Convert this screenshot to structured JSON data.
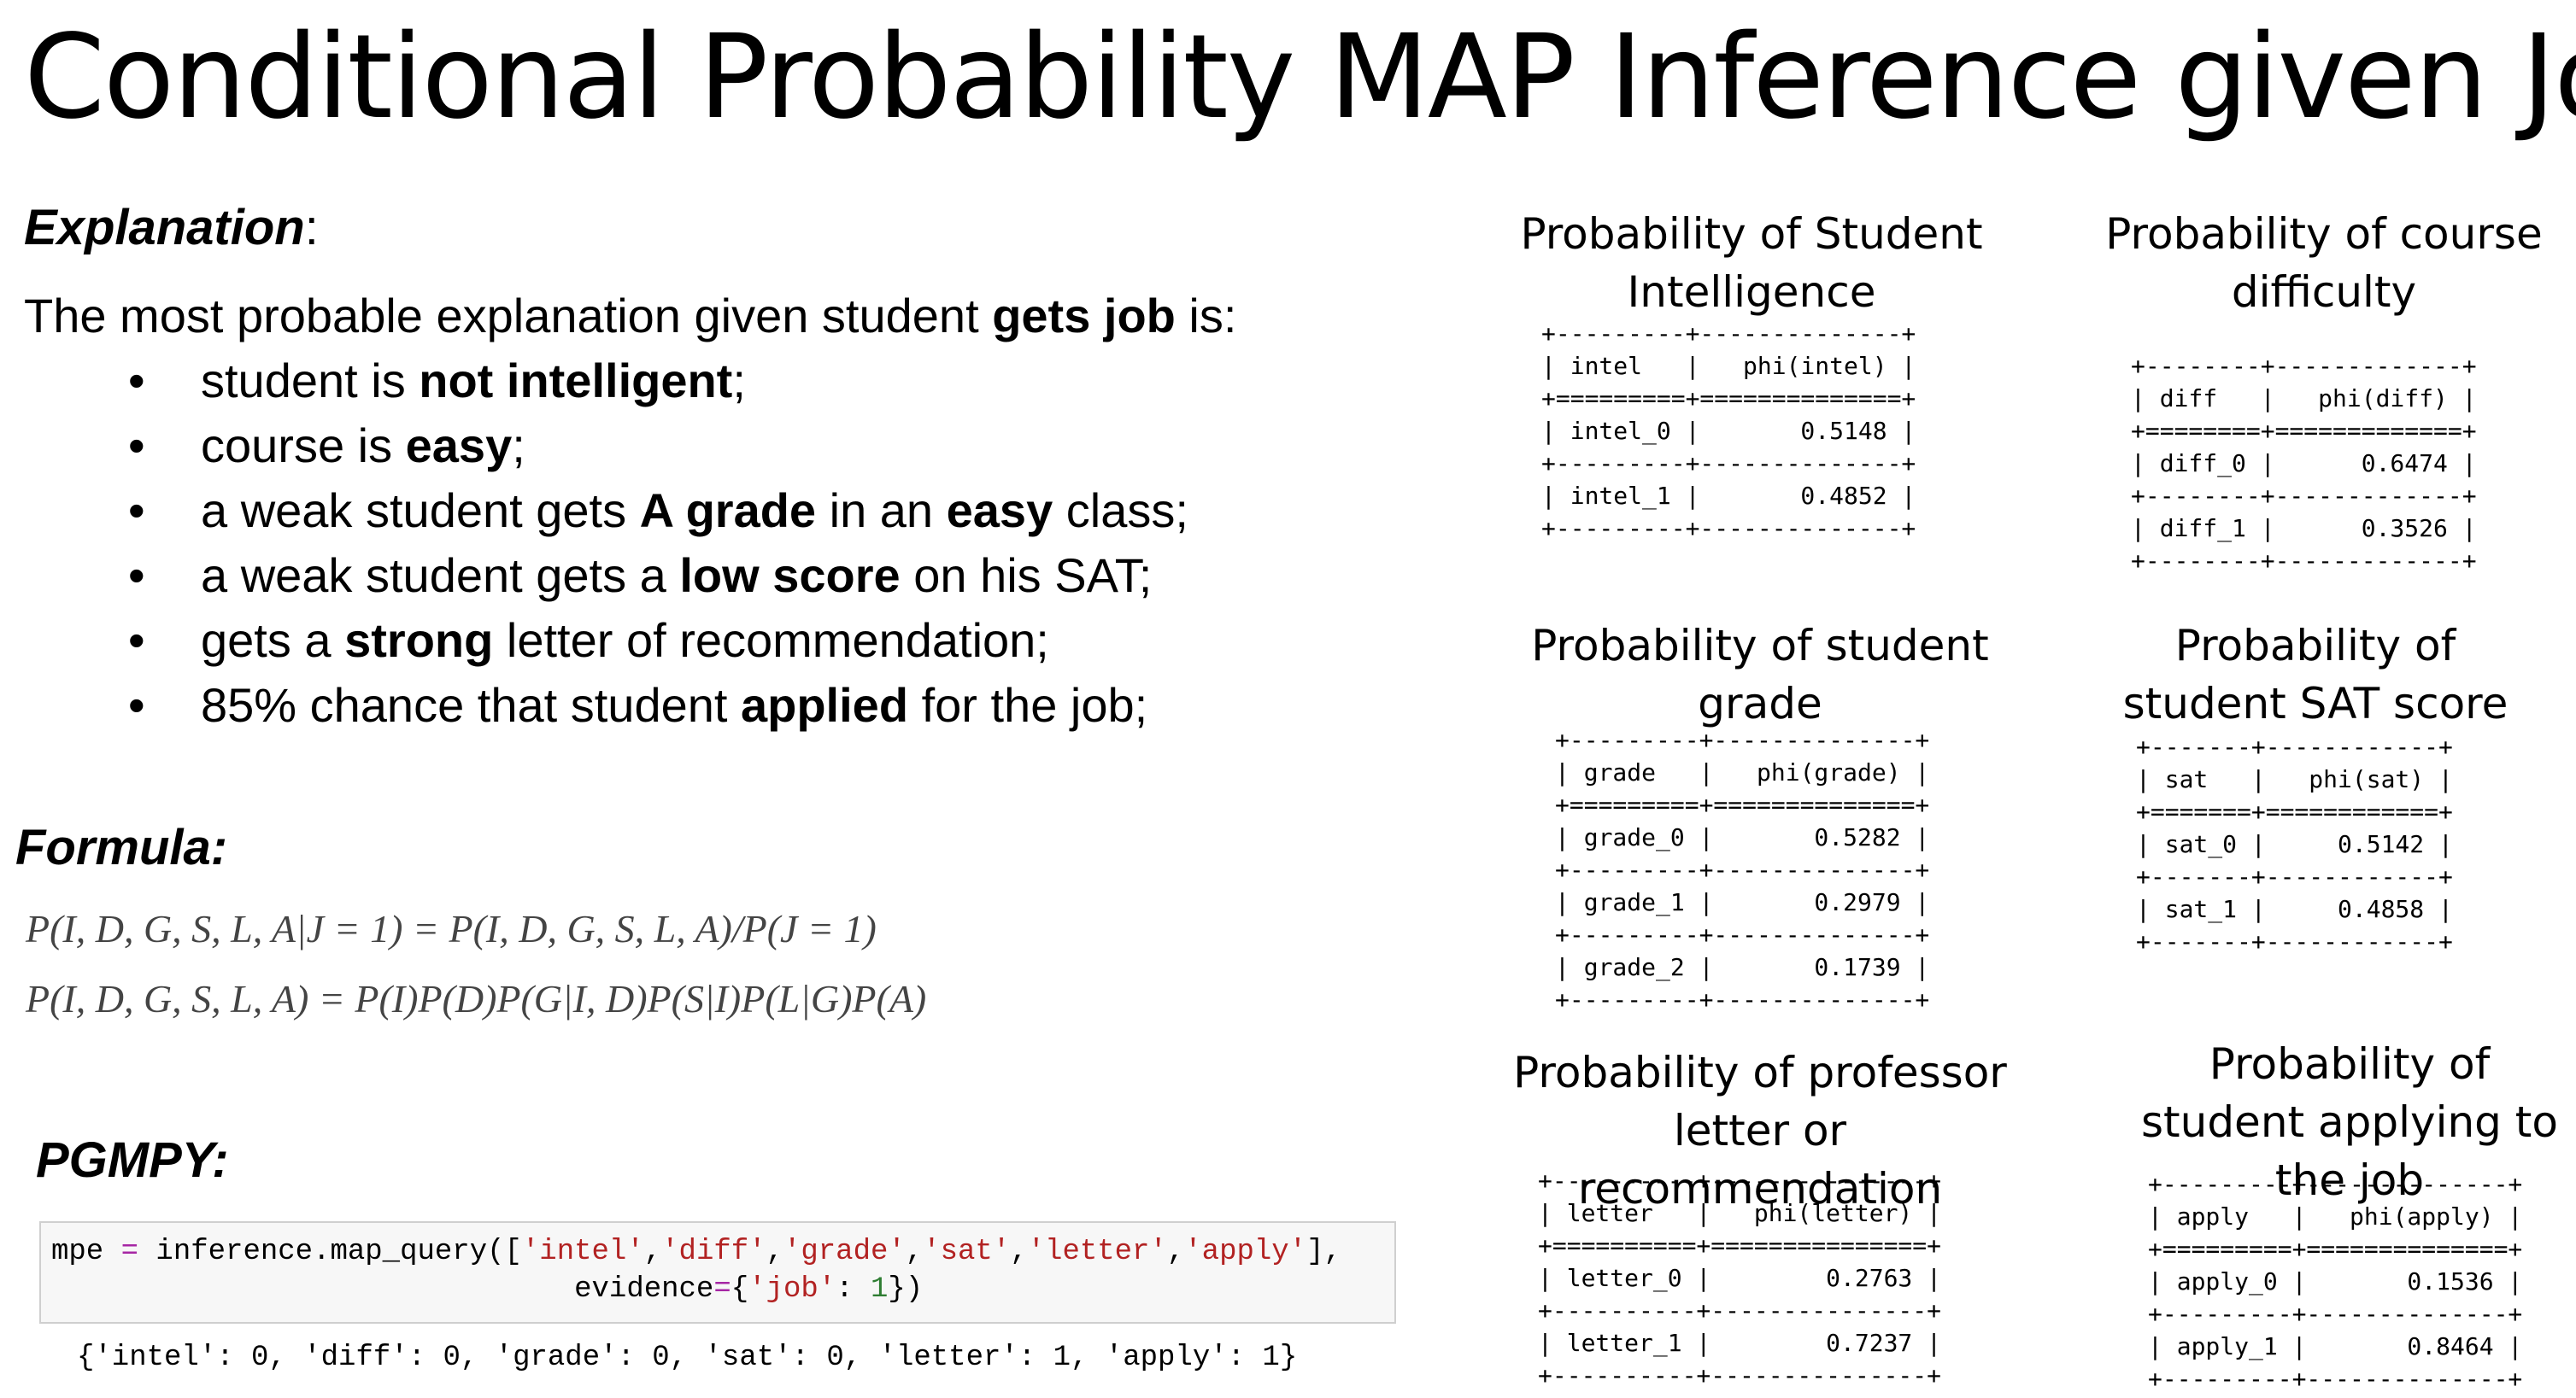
{
  "title": "Conditional Probability MAP Inference given Job",
  "explanation": {
    "label": "Explanation",
    "colon": ":",
    "intro_prefix": "The most probable explanation given student ",
    "intro_bold": "gets job",
    "intro_suffix": " is:",
    "bullet_symbol": "•",
    "bullets": [
      {
        "pre": "student is ",
        "bold": "not intelligent",
        "post": ";"
      },
      {
        "pre": "course is ",
        "bold": "easy",
        "post": ";"
      },
      {
        "pre": "a weak student gets ",
        "bold": "A grade",
        "mid": " in an ",
        "bold2": "easy",
        "post": " class;"
      },
      {
        "pre": "a weak student gets a ",
        "bold": "low score",
        "post": " on his SAT;"
      },
      {
        "pre": "gets a ",
        "bold": "strong",
        "post": " letter of recommendation;"
      },
      {
        "pre": "85% chance that student ",
        "bold": "applied",
        "post": " for the job;"
      }
    ]
  },
  "formula": {
    "label": "Formula:",
    "line1": "P(I, D, G, S, L, A|J = 1) = P(I, D, G, S, L, A)/P(J = 1)",
    "line2": "P(I, D, G, S, L, A) = P(I)P(D)P(G|I, D)P(S|I)P(L|G)P(A)"
  },
  "pgmpy": {
    "label": "PGMPY:",
    "code1": {
      "lhs": "mpe ",
      "eq": "=",
      "call": " inference.map_query([",
      "args": [
        "'intel'",
        "'diff'",
        "'grade'",
        "'sat'",
        "'letter'",
        "'apply'"
      ],
      "sep": ",",
      "end": "],"
    },
    "code2": {
      "indent": "                              ",
      "kw": "evidence",
      "eq": "=",
      "open": "{",
      "key": "'job'",
      "colon": ": ",
      "val": "1",
      "close": "})"
    },
    "result": "{'intel': 0, 'diff': 0, 'grade': 0, 'sat': 0, 'letter': 1, 'apply': 1}"
  },
  "tables": [
    {
      "title": "Probability of Student Intelligence",
      "text": "+---------+--------------+\n| intel   |   phi(intel) |\n+=========+==============+\n| intel_0 |       0.5148 |\n+---------+--------------+\n| intel_1 |       0.4852 |\n+---------+--------------+"
    },
    {
      "title": "Probability of course difficulty",
      "text": "+--------+-------------+\n| diff   |   phi(diff) |\n+========+=============+\n| diff_0 |      0.6474 |\n+--------+-------------+\n| diff_1 |      0.3526 |\n+--------+-------------+"
    },
    {
      "title": "Probability of student grade",
      "text": "+---------+--------------+\n| grade   |   phi(grade) |\n+=========+==============+\n| grade_0 |       0.5282 |\n+---------+--------------+\n| grade_1 |       0.2979 |\n+---------+--------------+\n| grade_2 |       0.1739 |\n+---------+--------------+"
    },
    {
      "title": "Probability of student SAT score",
      "text": "+-------+------------+\n| sat   |   phi(sat) |\n+=======+============+\n| sat_0 |     0.5142 |\n+-------+------------+\n| sat_1 |     0.4858 |\n+-------+------------+"
    },
    {
      "title": "Probability of professor letter or recommendation",
      "text": "+----------+---------------+\n| letter   |   phi(letter) |\n+==========+===============+\n| letter_0 |        0.2763 |\n+----------+---------------+\n| letter_1 |        0.7237 |\n+----------+---------------+"
    },
    {
      "title": "Probability of student applying to the job",
      "text": "+---------+--------------+\n| apply   |   phi(apply) |\n+=========+==============+\n| apply_0 |       0.1536 |\n+---------+--------------+\n| apply_1 |       0.8464 |\n+---------+--------------+"
    }
  ]
}
